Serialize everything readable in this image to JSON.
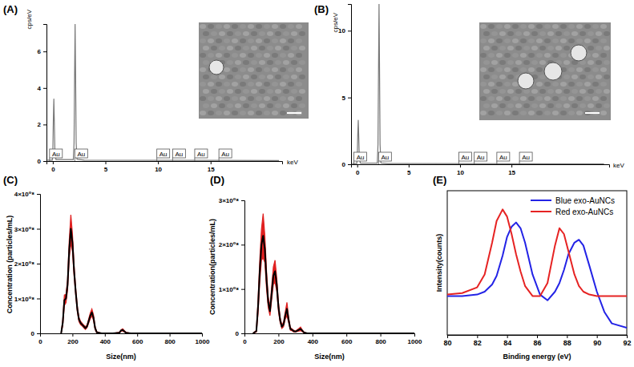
{
  "chart_data": [
    {
      "type": "line",
      "title": "(A)",
      "y_label": "cps/eV",
      "x_label": "keV",
      "x": [
        -0.5,
        -0.05,
        0.0,
        0.05,
        0.1,
        0.15,
        0.2,
        0.3,
        1.95,
        2.02,
        2.07,
        2.12,
        2.17,
        2.22,
        2.3,
        3.0,
        21.5
      ],
      "series": [
        {
          "color": "#777777",
          "values": [
            0.05,
            0.05,
            0.4,
            2.2,
            3.4,
            2.0,
            0.5,
            0.08,
            0.08,
            1.0,
            4.5,
            7.5,
            4.5,
            1.0,
            0.1,
            0.05,
            0.03
          ]
        }
      ],
      "xlim": [
        -0.6,
        21.8
      ],
      "ylim": [
        0,
        7.5
      ],
      "xticks": [
        0,
        5,
        10,
        15
      ],
      "yticks": [
        0,
        2,
        4,
        6
      ],
      "annotations": [
        {
          "text": "Au",
          "x": 0.3
        },
        {
          "text": "Au",
          "x": 2.7
        },
        {
          "text": "Au",
          "x": 10.5
        },
        {
          "text": "Au",
          "x": 12.0
        },
        {
          "text": "Au",
          "x": 14.1
        },
        {
          "text": "Au",
          "x": 16.4
        }
      ]
    },
    {
      "type": "line",
      "title": "(B)",
      "y_label": "cps/eV",
      "x_label": "keV",
      "x": [
        -0.5,
        -0.05,
        0.0,
        0.05,
        0.1,
        0.15,
        0.2,
        0.3,
        1.95,
        2.02,
        2.07,
        2.12,
        2.17,
        2.22,
        2.3,
        3.0,
        24.0
      ],
      "series": [
        {
          "color": "#777777",
          "values": [
            0.05,
            0.05,
            0.4,
            2.2,
            3.3,
            2.0,
            0.5,
            0.08,
            0.08,
            1.5,
            7.0,
            12,
            7.0,
            1.5,
            0.1,
            0.05,
            0.03
          ]
        }
      ],
      "xlim": [
        -0.6,
        24.5
      ],
      "ylim": [
        0,
        12
      ],
      "xticks": [
        0,
        5,
        10,
        15
      ],
      "yticks": [
        0,
        5,
        10
      ],
      "annotations": [
        {
          "text": "Au",
          "x": 0.3
        },
        {
          "text": "Au",
          "x": 2.7
        },
        {
          "text": "Au",
          "x": 10.5
        },
        {
          "text": "Au",
          "x": 12.0
        },
        {
          "text": "Au",
          "x": 14.2
        },
        {
          "text": "Au",
          "x": 16.4
        }
      ]
    },
    {
      "type": "line",
      "title": "(C)",
      "y_label": "Concentration (particles/mL)",
      "x_label": "Size(nm)",
      "x": [
        130,
        140,
        150,
        160,
        170,
        180,
        190,
        200,
        210,
        220,
        230,
        240,
        250,
        260,
        270,
        280,
        290,
        300,
        310,
        320,
        330,
        340,
        350,
        380,
        450,
        490,
        500,
        510,
        520,
        530,
        560,
        700,
        1000
      ],
      "series": [
        {
          "color": "#000000",
          "error_color": "#e02020",
          "values": [
            0,
            30000000,
            95000000,
            100000000,
            140000000,
            240000000,
            300000000,
            260000000,
            180000000,
            120000000,
            70000000,
            40000000,
            30000000,
            25000000,
            20000000,
            15000000,
            20000000,
            35000000,
            50000000,
            60000000,
            45000000,
            15000000,
            3000000,
            0,
            0,
            2000000,
            8000000,
            10000000,
            6000000,
            2000000,
            0,
            0,
            0
          ],
          "error": [
            0,
            8000000,
            15000000,
            12000000,
            15000000,
            25000000,
            40000000,
            25000000,
            15000000,
            10000000,
            8000000,
            6000000,
            5000000,
            4000000,
            4000000,
            4000000,
            4000000,
            6000000,
            8000000,
            10000000,
            8000000,
            4000000,
            2000000,
            0,
            0,
            1000000,
            2000000,
            3000000,
            2000000,
            1000000,
            0,
            0,
            0
          ]
        }
      ],
      "xlim": [
        0,
        1000
      ],
      "ylim": [
        0,
        400000000
      ],
      "xticks": [
        0,
        200,
        400,
        600,
        800,
        1000
      ],
      "yticks": [
        0,
        {
          "value": 100000000,
          "label": "1×10⁰⁸"
        },
        {
          "value": 200000000,
          "label": "2×10⁰⁸"
        },
        {
          "value": 300000000,
          "label": "3×10⁰⁸"
        },
        {
          "value": 400000000,
          "label": "4×10⁰⁸"
        }
      ]
    },
    {
      "type": "line",
      "title": "(D)",
      "y_label": "Concentration(particles/mL)",
      "x_label": "Size(nm)",
      "x": [
        50,
        70,
        80,
        90,
        100,
        110,
        120,
        130,
        140,
        150,
        160,
        170,
        180,
        190,
        200,
        210,
        220,
        230,
        240,
        250,
        260,
        270,
        280,
        290,
        300,
        320,
        330,
        340,
        350,
        370,
        500,
        1000
      ],
      "series": [
        {
          "color": "#000000",
          "error_color": "#e02020",
          "values": [
            0,
            5000000,
            60000000,
            140000000,
            200000000,
            220000000,
            190000000,
            120000000,
            70000000,
            50000000,
            90000000,
            130000000,
            140000000,
            110000000,
            60000000,
            30000000,
            15000000,
            20000000,
            40000000,
            55000000,
            30000000,
            10000000,
            8000000,
            5000000,
            4000000,
            8000000,
            10000000,
            6000000,
            2000000,
            0,
            0,
            0
          ],
          "error": [
            0,
            2000000,
            15000000,
            25000000,
            35000000,
            50000000,
            30000000,
            20000000,
            12000000,
            10000000,
            15000000,
            20000000,
            25000000,
            15000000,
            10000000,
            6000000,
            4000000,
            5000000,
            8000000,
            15000000,
            6000000,
            3000000,
            2000000,
            2000000,
            1000000,
            3000000,
            4000000,
            2000000,
            1000000,
            0,
            0,
            0
          ]
        }
      ],
      "xlim": [
        0,
        1000
      ],
      "ylim": [
        0,
        300000000
      ],
      "xticks": [
        0,
        200,
        400,
        600,
        800,
        1000
      ],
      "yticks": [
        0,
        {
          "value": 100000000,
          "label": "1×10⁰⁸"
        },
        {
          "value": 200000000,
          "label": "2×10⁰⁸"
        },
        {
          "value": 300000000,
          "label": "3×10⁰⁸"
        }
      ]
    },
    {
      "type": "line",
      "title": "(E)",
      "y_label": "Intensity(counts)",
      "x_label": "Binding energy (eV)",
      "x": [
        80,
        81,
        82,
        82.5,
        83,
        83.3,
        83.7,
        84,
        84.3,
        84.6,
        84.9,
        85.2,
        85.7,
        86.2,
        86.7,
        87.2,
        87.5,
        87.8,
        88.1,
        88.5,
        88.8,
        89.1,
        89.5,
        90,
        90.5,
        91,
        92
      ],
      "series": [
        {
          "name": "Blue exo-AuNCs",
          "color": "#2323e6",
          "values": [
            0.27,
            0.27,
            0.28,
            0.3,
            0.35,
            0.41,
            0.55,
            0.68,
            0.75,
            0.78,
            0.74,
            0.64,
            0.42,
            0.28,
            0.24,
            0.3,
            0.36,
            0.45,
            0.56,
            0.64,
            0.66,
            0.62,
            0.48,
            0.3,
            0.16,
            0.08,
            0.05
          ]
        },
        {
          "name": "Red exo-AuNCs",
          "color": "#e62323",
          "values": [
            0.28,
            0.29,
            0.33,
            0.42,
            0.64,
            0.79,
            0.87,
            0.82,
            0.7,
            0.56,
            0.44,
            0.34,
            0.27,
            0.27,
            0.36,
            0.62,
            0.74,
            0.7,
            0.58,
            0.42,
            0.34,
            0.3,
            0.28,
            0.27,
            0.27,
            0.27,
            0.27
          ]
        }
      ],
      "xlim": [
        80,
        92
      ],
      "ylim": [
        0,
        1
      ],
      "xticks": [
        80,
        82,
        84,
        86,
        88,
        90,
        92
      ],
      "tick_labels": "x",
      "legend": "top-right"
    }
  ]
}
